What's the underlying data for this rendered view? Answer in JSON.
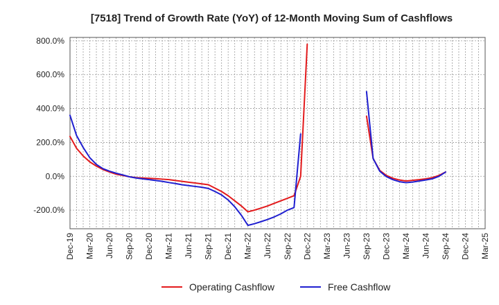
{
  "chart_data": {
    "type": "line",
    "title": "[7518]  Trend of Growth Rate (YoY) of 12-Month Moving Sum of Cashflows",
    "xlabel": "",
    "ylabel": "",
    "ylim": [
      -310,
      820
    ],
    "y_ticks": [
      800,
      600,
      400,
      200,
      0,
      -200
    ],
    "y_tick_labels": [
      "800.0%",
      "600.0%",
      "400.0%",
      "200.0%",
      "0.0%",
      "-200.0%"
    ],
    "x_tick_labels": [
      "Dec-19",
      "Mar-20",
      "Jun-20",
      "Sep-20",
      "Dec-20",
      "Mar-21",
      "Jun-21",
      "Sep-21",
      "Dec-21",
      "Mar-22",
      "Jun-22",
      "Sep-22",
      "Dec-22",
      "Mar-23",
      "Jun-23",
      "Sep-23",
      "Dec-23",
      "Mar-24",
      "Jun-24",
      "Sep-24",
      "Dec-24",
      "Mar-25"
    ],
    "x_months": [
      "Dec-19",
      "Jan-20",
      "Feb-20",
      "Mar-20",
      "Apr-20",
      "May-20",
      "Jun-20",
      "Jul-20",
      "Aug-20",
      "Sep-20",
      "Oct-20",
      "Nov-20",
      "Dec-20",
      "Jan-21",
      "Feb-21",
      "Mar-21",
      "Apr-21",
      "May-21",
      "Jun-21",
      "Jul-21",
      "Aug-21",
      "Sep-21",
      "Oct-21",
      "Nov-21",
      "Dec-21",
      "Jan-22",
      "Feb-22",
      "Mar-22",
      "Apr-22",
      "May-22",
      "Jun-22",
      "Jul-22",
      "Aug-22",
      "Sep-22",
      "Oct-22",
      "Nov-22",
      "Dec-22",
      "Jan-23",
      "Feb-23",
      "Mar-23",
      "Apr-23",
      "May-23",
      "Jun-23",
      "Jul-23",
      "Aug-23",
      "Sep-23",
      "Oct-23",
      "Nov-23",
      "Dec-23",
      "Jan-24",
      "Feb-24",
      "Mar-24",
      "Apr-24",
      "May-24",
      "Jun-24",
      "Jul-24",
      "Aug-24",
      "Sep-24",
      "Oct-24",
      "Nov-24",
      "Dec-24",
      "Jan-25",
      "Feb-25",
      "Mar-25"
    ],
    "grid": true,
    "legend_position": "bottom",
    "series": [
      {
        "name": "Operating Cashflow",
        "color": "#e31a1c",
        "points": [
          [
            "Dec-19",
            235
          ],
          [
            "Jan-20",
            165
          ],
          [
            "Feb-20",
            120
          ],
          [
            "Mar-20",
            85
          ],
          [
            "Apr-20",
            60
          ],
          [
            "May-20",
            40
          ],
          [
            "Jun-20",
            25
          ],
          [
            "Jul-20",
            12
          ],
          [
            "Aug-20",
            5
          ],
          [
            "Sep-20",
            -3
          ],
          [
            "Oct-20",
            -8
          ],
          [
            "Nov-20",
            -10
          ],
          [
            "Dec-20",
            -12
          ],
          [
            "Jan-21",
            -14
          ],
          [
            "Feb-21",
            -17
          ],
          [
            "Mar-21",
            -20
          ],
          [
            "Apr-21",
            -25
          ],
          [
            "May-21",
            -30
          ],
          [
            "Jun-21",
            -35
          ],
          [
            "Jul-21",
            -40
          ],
          [
            "Aug-21",
            -45
          ],
          [
            "Sep-21",
            -50
          ],
          [
            "Oct-21",
            -70
          ],
          [
            "Nov-21",
            -90
          ],
          [
            "Dec-21",
            -115
          ],
          [
            "Jan-22",
            -145
          ],
          [
            "Feb-22",
            -175
          ],
          [
            "Mar-22",
            -210
          ],
          [
            "Apr-22",
            -200
          ],
          [
            "May-22",
            -188
          ],
          [
            "Jun-22",
            -175
          ],
          [
            "Jul-22",
            -160
          ],
          [
            "Aug-22",
            -145
          ],
          [
            "Sep-22",
            -130
          ],
          [
            "Oct-22",
            -115
          ],
          [
            "Nov-22",
            0
          ],
          [
            "Dec-22",
            780
          ]
        ]
      },
      {
        "name": "",
        "color": "#e31a1c",
        "points": [
          [
            "Sep-23",
            355
          ],
          [
            "Oct-23",
            105
          ],
          [
            "Nov-23",
            35
          ],
          [
            "Dec-23",
            5
          ],
          [
            "Jan-24",
            -12
          ],
          [
            "Feb-24",
            -22
          ],
          [
            "Mar-24",
            -28
          ],
          [
            "Apr-24",
            -24
          ],
          [
            "May-24",
            -20
          ],
          [
            "Jun-24",
            -15
          ],
          [
            "Jul-24",
            -8
          ],
          [
            "Aug-24",
            5
          ],
          [
            "Sep-24",
            25
          ]
        ]
      },
      {
        "name": "Free Cashflow",
        "color": "#1f1fd0",
        "points": [
          [
            "Dec-19",
            360
          ],
          [
            "Jan-20",
            240
          ],
          [
            "Feb-20",
            170
          ],
          [
            "Mar-20",
            110
          ],
          [
            "Apr-20",
            70
          ],
          [
            "May-20",
            45
          ],
          [
            "Jun-20",
            30
          ],
          [
            "Jul-20",
            18
          ],
          [
            "Aug-20",
            8
          ],
          [
            "Sep-20",
            -3
          ],
          [
            "Oct-20",
            -10
          ],
          [
            "Nov-20",
            -15
          ],
          [
            "Dec-20",
            -20
          ],
          [
            "Jan-21",
            -25
          ],
          [
            "Feb-21",
            -30
          ],
          [
            "Mar-21",
            -37
          ],
          [
            "Apr-21",
            -43
          ],
          [
            "May-21",
            -50
          ],
          [
            "Jun-21",
            -55
          ],
          [
            "Jul-21",
            -60
          ],
          [
            "Aug-21",
            -65
          ],
          [
            "Sep-21",
            -72
          ],
          [
            "Oct-21",
            -90
          ],
          [
            "Nov-21",
            -110
          ],
          [
            "Dec-21",
            -140
          ],
          [
            "Jan-22",
            -180
          ],
          [
            "Feb-22",
            -230
          ],
          [
            "Mar-22",
            -290
          ],
          [
            "Apr-22",
            -280
          ],
          [
            "May-22",
            -268
          ],
          [
            "Jun-22",
            -255
          ],
          [
            "Jul-22",
            -240
          ],
          [
            "Aug-22",
            -222
          ],
          [
            "Sep-22",
            -200
          ],
          [
            "Oct-22",
            -185
          ],
          [
            "Nov-22",
            250
          ]
        ]
      },
      {
        "name": "",
        "color": "#1f1fd0",
        "points": [
          [
            "Sep-23",
            500
          ],
          [
            "Oct-23",
            105
          ],
          [
            "Nov-23",
            30
          ],
          [
            "Dec-23",
            -2
          ],
          [
            "Jan-24",
            -20
          ],
          [
            "Feb-24",
            -32
          ],
          [
            "Mar-24",
            -38
          ],
          [
            "Apr-24",
            -34
          ],
          [
            "May-24",
            -28
          ],
          [
            "Jun-24",
            -22
          ],
          [
            "Jul-24",
            -15
          ],
          [
            "Aug-24",
            0
          ],
          [
            "Sep-24",
            25
          ]
        ]
      }
    ],
    "legend": [
      {
        "name": "Operating Cashflow",
        "color": "#e31a1c"
      },
      {
        "name": "Free Cashflow",
        "color": "#1f1fd0"
      }
    ]
  }
}
